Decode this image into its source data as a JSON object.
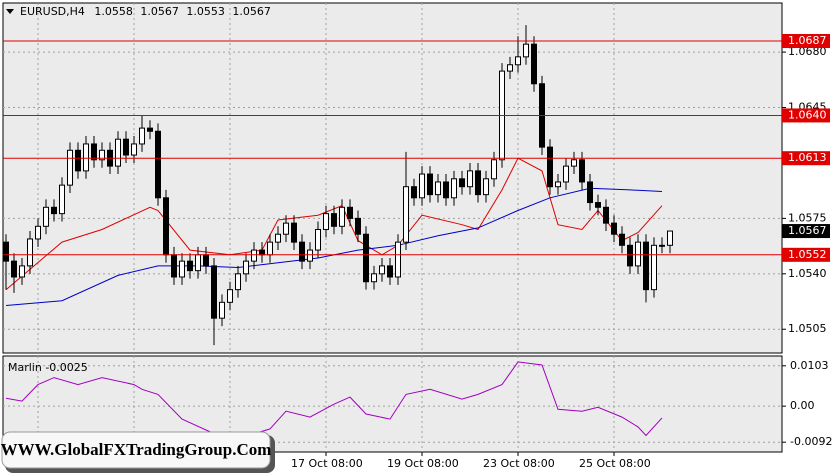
{
  "chart_data": {
    "type": "candlestick",
    "symbol": "EURUSD,H4",
    "categories": [
      null,
      null,
      null,
      null,
      null,
      null,
      null,
      null,
      null,
      null,
      null,
      null,
      null,
      null,
      null,
      null,
      null,
      null,
      null,
      null,
      null,
      null,
      null,
      null,
      null,
      null,
      null,
      null,
      null,
      null,
      null,
      null,
      null,
      null,
      null,
      null,
      null,
      null,
      null,
      null,
      "17 Oct 08:00",
      null,
      null,
      null,
      null,
      null,
      null,
      null,
      null,
      null,
      null,
      null,
      "19 Oct 08:00",
      null,
      null,
      null,
      null,
      null,
      null,
      null,
      null,
      null,
      null,
      null,
      "23 Oct 08:00",
      null,
      null,
      null,
      null,
      null,
      null,
      null,
      null,
      null,
      null,
      null,
      "25 Oct 08:00",
      null,
      null,
      null,
      null,
      null,
      null,
      null
    ],
    "open": [
      1.056,
      1.0548,
      1.0538,
      1.0545,
      1.0562,
      1.057,
      1.0582,
      1.0578,
      1.0596,
      1.0618,
      1.0605,
      1.0622,
      1.0612,
      1.0618,
      1.0608,
      1.0625,
      1.0615,
      1.0622,
      1.0632,
      1.063,
      1.0588,
      1.0552,
      1.0538,
      1.0548,
      1.0542,
      1.0552,
      1.0545,
      1.0512,
      1.0522,
      1.053,
      1.054,
      1.0548,
      1.0555,
      1.0552,
      1.056,
      1.0565,
      1.0572,
      1.056,
      1.0548,
      1.0555,
      1.0568,
      1.0578,
      1.057,
      1.0582,
      1.0575,
      1.0565,
      1.0535,
      1.054,
      1.0545,
      1.0538,
      1.056,
      1.0595,
      1.0588,
      1.0603,
      1.059,
      1.0598,
      1.0588,
      1.06,
      1.0595,
      1.0605,
      1.059,
      1.06,
      1.0612,
      1.0668,
      1.0672,
      1.0677,
      1.0685,
      1.066,
      1.062,
      1.0595,
      1.0598,
      1.0608,
      1.0612,
      1.0598,
      1.0585,
      1.0582,
      1.0572,
      1.0565,
      1.0558,
      1.0545,
      1.056,
      1.053,
      1.0558,
      1.0558
    ],
    "high": [
      1.0565,
      1.0553,
      1.055,
      1.0567,
      1.0575,
      1.0587,
      1.0587,
      1.0601,
      1.0623,
      1.0623,
      1.0627,
      1.0627,
      1.0623,
      1.0623,
      1.063,
      1.063,
      1.0627,
      1.064,
      1.0637,
      1.0635,
      1.0593,
      1.0557,
      1.0553,
      1.0553,
      1.0557,
      1.0557,
      1.055,
      1.0527,
      1.0535,
      1.0545,
      1.0553,
      1.056,
      1.056,
      1.0565,
      1.057,
      1.0577,
      1.0577,
      1.0565,
      1.056,
      1.0573,
      1.0583,
      1.0583,
      1.0587,
      1.0587,
      1.058,
      1.057,
      1.0545,
      1.055,
      1.055,
      1.0565,
      1.0617,
      1.06,
      1.0608,
      1.0608,
      1.0603,
      1.0603,
      1.0605,
      1.0605,
      1.061,
      1.061,
      1.0605,
      1.0617,
      1.0673,
      1.0677,
      1.069,
      1.0697,
      1.069,
      1.0665,
      1.0625,
      1.0603,
      1.0613,
      1.0617,
      1.0617,
      1.0603,
      1.059,
      1.0587,
      1.0577,
      1.057,
      1.0563,
      1.0565,
      1.0565,
      1.0563,
      1.0563,
      1.0567
    ],
    "low": [
      1.053,
      1.0528,
      1.0533,
      1.054,
      1.0557,
      1.0565,
      1.0573,
      1.0573,
      1.0591,
      1.06,
      1.06,
      1.0607,
      1.0607,
      1.0603,
      1.0603,
      1.061,
      1.061,
      1.0617,
      1.0625,
      1.0583,
      1.0547,
      1.0533,
      1.0533,
      1.0537,
      1.0537,
      1.054,
      1.0495,
      1.0507,
      1.0517,
      1.0525,
      1.0535,
      1.0543,
      1.0547,
      1.0547,
      1.0555,
      1.056,
      1.0555,
      1.0543,
      1.0543,
      1.055,
      1.0563,
      1.0565,
      1.0565,
      1.057,
      1.056,
      1.053,
      1.053,
      1.0535,
      1.0533,
      1.0533,
      1.0555,
      1.0583,
      1.0583,
      1.0585,
      1.0585,
      1.0583,
      1.0583,
      1.059,
      1.059,
      1.0585,
      1.0585,
      1.0595,
      1.0607,
      1.0663,
      1.0667,
      1.0672,
      1.0655,
      1.0615,
      1.059,
      1.059,
      1.0593,
      1.0603,
      1.0593,
      1.058,
      1.0577,
      1.0567,
      1.056,
      1.0553,
      1.054,
      1.054,
      1.0522,
      1.0525,
      1.0553,
      1.0553
    ],
    "close": [
      1.0548,
      1.0538,
      1.0545,
      1.0562,
      1.057,
      1.0582,
      1.0578,
      1.0596,
      1.0618,
      1.0605,
      1.0622,
      1.0612,
      1.0618,
      1.0608,
      1.0625,
      1.0615,
      1.0622,
      1.0632,
      1.063,
      1.0588,
      1.0552,
      1.0538,
      1.0548,
      1.0542,
      1.0552,
      1.0545,
      1.0512,
      1.0522,
      1.053,
      1.054,
      1.0548,
      1.0555,
      1.0552,
      1.056,
      1.0565,
      1.0572,
      1.056,
      1.0548,
      1.0555,
      1.0568,
      1.0578,
      1.057,
      1.0582,
      1.0575,
      1.0565,
      1.0535,
      1.054,
      1.0545,
      1.0538,
      1.056,
      1.0595,
      1.0588,
      1.0603,
      1.059,
      1.0598,
      1.0588,
      1.06,
      1.0595,
      1.0605,
      1.059,
      1.06,
      1.0612,
      1.0668,
      1.0672,
      1.0677,
      1.0685,
      1.066,
      1.062,
      1.0595,
      1.0598,
      1.0608,
      1.0612,
      1.0598,
      1.0585,
      1.0582,
      1.0572,
      1.0565,
      1.0558,
      1.0545,
      1.056,
      1.053,
      1.0558,
      1.0558,
      1.0567
    ],
    "up_color": "#ffffff",
    "down_color": "#000000",
    "ylim": [
      1.049,
      1.0711
    ],
    "yticks": [
      {
        "value": 1.068,
        "label": "1.0680"
      },
      1.0645,
      1.0575,
      {
        "value": 1.054,
        "label": "1.0540"
      },
      1.0505
    ],
    "grid": true,
    "levels": [
      {
        "value": 1.0687,
        "label": "1.0687"
      },
      {
        "value": 1.064,
        "label": "1.0640"
      },
      {
        "value": 1.0613,
        "label": "1.0613"
      },
      {
        "value": 1.0552,
        "label": "1.0552"
      }
    ],
    "level_color": "#e00000",
    "lines": [
      {
        "color": "#e00000",
        "x": [
          0,
          7,
          12,
          18,
          19,
          23,
          28,
          32,
          34,
          39,
          42,
          44,
          47,
          49,
          52,
          57,
          59,
          62,
          64,
          67,
          69,
          72,
          74,
          77,
          79,
          82
        ],
        "values": [
          1.053,
          1.056,
          1.0568,
          1.0582,
          1.058,
          1.0555,
          1.0552,
          1.0555,
          1.0574,
          1.0577,
          1.0583,
          1.0561,
          1.0552,
          1.0558,
          1.0577,
          1.0571,
          1.0568,
          1.0593,
          1.0613,
          1.0605,
          1.0571,
          1.0568,
          1.058,
          1.0561,
          1.0566,
          1.0583
        ]
      },
      {
        "color": "#0000c8",
        "x": [
          0,
          7,
          14,
          19,
          24,
          29,
          34,
          39,
          44,
          49,
          54,
          59,
          64,
          68,
          73,
          78,
          82
        ],
        "values": [
          1.052,
          1.0523,
          1.0539,
          1.0545,
          1.0545,
          1.0544,
          1.0547,
          1.055,
          1.0555,
          1.0558,
          1.0564,
          1.0569,
          1.058,
          1.0588,
          1.0594,
          1.0593,
          1.0592
        ]
      }
    ],
    "indicator": {
      "label": "Marlin -0.0025",
      "color": "#a000c0",
      "ylim": [
        -0.0117,
        0.0128
      ],
      "yticks": [
        0.0103,
        {
          "value": 0,
          "label": "0.00"
        },
        -0.0092
      ],
      "x": [
        0,
        2,
        4,
        6,
        9,
        12,
        16,
        17,
        19,
        22,
        26,
        29,
        33,
        35,
        38,
        41,
        43,
        45,
        48,
        50,
        53,
        57,
        59,
        62,
        64,
        67,
        69,
        72,
        74,
        77,
        79,
        80,
        82
      ],
      "values": [
        0.002,
        0.0013,
        0.0055,
        0.0073,
        0.0055,
        0.0073,
        0.0055,
        0.0043,
        0.003,
        -0.0033,
        -0.007,
        -0.0083,
        -0.0058,
        -0.0013,
        -0.0028,
        0.0005,
        0.0023,
        -0.002,
        -0.0033,
        0.003,
        0.0043,
        0.0018,
        0.003,
        0.0055,
        0.0113,
        0.0105,
        -0.0008,
        -0.0013,
        -0.0003,
        -0.0028,
        -0.0053,
        -0.0075,
        -0.003
      ]
    }
  },
  "watermark": "WWW.GlobalFXTradingGroup.Com"
}
